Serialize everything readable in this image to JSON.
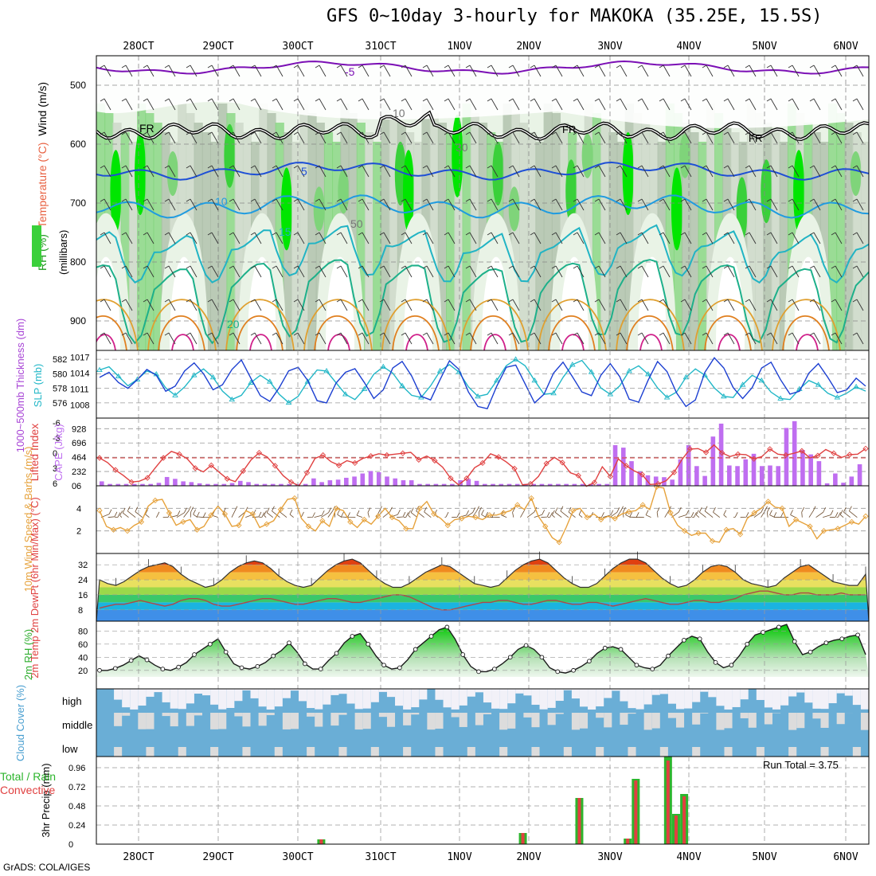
{
  "title": "GFS 0~10day 3-hourly for MAKOKA (35.25E, 15.5S)",
  "footer": "GrADS: COLA/IGES",
  "date_labels": [
    "28OCT",
    "29OCT",
    "30OCT",
    "31OCT",
    "1NOV",
    "2NOV",
    "3NOV",
    "4NOV",
    "5NOV",
    "6NOV"
  ],
  "chart_data": [
    {
      "type": "heatmap",
      "panel": "upper-air",
      "ylabel_parts": [
        "RH (%)",
        "Temperature (°C)",
        "Wind (m/s)"
      ],
      "yaxis_title": "(millibars)",
      "yticks": [
        500,
        600,
        700,
        800,
        900
      ],
      "ylim": [
        450,
        950
      ],
      "contour_labels": [
        "-5",
        "5",
        "10",
        "15",
        "20",
        "FR",
        "10",
        "30",
        "50"
      ],
      "temperature_isotherms": [
        {
          "value": -5,
          "color": "#7b0fb5"
        },
        {
          "value": 5,
          "color": "#1e4fd6"
        },
        {
          "value": 10,
          "color": "#1f9be0"
        },
        {
          "value": 15,
          "color": "#21b4c4"
        },
        {
          "value": 20,
          "color": "#1db08a"
        }
      ],
      "freezing_level_label": "FR",
      "rh_colors": [
        "#ffffff",
        "#e9f3e6",
        "#c9d6c6",
        "#a9bca6",
        "#7fd47a",
        "#3ad03a",
        "#00e600"
      ]
    },
    {
      "type": "line",
      "panel": "thickness-slp",
      "ylabel": "1000~500mb Thickness (dm)",
      "ylabel2": "SLP (mb)",
      "yticks_left": [
        576,
        578,
        580,
        582
      ],
      "yticks_right": [
        1008,
        1011,
        1014,
        1017
      ],
      "series": [
        {
          "name": "1000~500mb Thickness (dm)",
          "color": "#1c3fd1",
          "values": [
            579.5,
            580.2,
            578.8,
            578.0,
            579.2,
            580.6,
            579.8,
            577.6,
            578.3,
            580.4,
            581.5,
            580.0,
            577.8,
            578.5,
            580.6,
            581.9,
            579.4,
            577.0,
            576.2,
            578.1,
            580.4,
            580.9,
            579.1,
            576.3,
            576.0,
            578.7,
            580.2,
            580.7,
            578.8,
            576.6,
            577.8,
            580.8,
            581.7,
            579.7,
            576.9,
            576.4,
            579.2,
            581.8,
            580.6,
            577.5,
            575.5,
            575.2,
            578.3,
            580.9,
            581.2,
            578.6,
            576.0,
            577.2,
            580.1,
            581.6,
            579.6,
            577.5,
            577.0,
            579.8,
            581.4,
            579.6,
            576.5,
            576.1,
            579.1,
            581.7,
            580.3,
            577.4,
            575.5,
            576.4,
            580.2,
            582.2,
            580.8,
            578.1,
            576.6,
            578.1,
            580.8,
            581.6,
            579.2,
            577.2,
            577.6,
            580.1,
            581.4,
            579.5,
            577.4,
            577.8,
            579.4,
            578.3
          ]
        },
        {
          "name": "SLP (mb)",
          "color": "#22b7c7",
          "values": [
            1014.6,
            1015.2,
            1013.4,
            1011.6,
            1012.8,
            1014.4,
            1013.8,
            1011.2,
            1009.8,
            1011.4,
            1013.6,
            1014.8,
            1013.2,
            1010.6,
            1009.0,
            1009.8,
            1012.2,
            1013.6,
            1012.4,
            1010.0,
            1008.4,
            1009.6,
            1012.4,
            1014.6,
            1014.4,
            1012.2,
            1010.0,
            1009.0,
            1011.0,
            1013.8,
            1015.2,
            1014.0,
            1011.6,
            1009.8,
            1009.4,
            1011.6,
            1014.4,
            1015.6,
            1014.2,
            1011.4,
            1009.6,
            1010.0,
            1012.6,
            1015.4,
            1016.6,
            1015.4,
            1012.6,
            1010.0,
            1010.2,
            1013.2,
            1015.6,
            1016.4,
            1014.2,
            1011.2,
            1010.0,
            1011.6,
            1014.4,
            1015.4,
            1013.8,
            1011.2,
            1009.4,
            1010.4,
            1013.2,
            1014.8,
            1013.6,
            1011.2,
            1009.6,
            1009.4,
            1011.8,
            1013.6,
            1012.6,
            1010.4,
            1009.2,
            1009.0,
            1011.0,
            1012.6,
            1011.8,
            1010.2,
            1009.4,
            1010.2,
            1011.4,
            1010.6
          ]
        }
      ]
    },
    {
      "type": "bar",
      "panel": "lifted-cape",
      "ylabel": "Lifted Index",
      "ylabel2": "CAPE (J/kg)",
      "yticks_left": [
        "-6",
        "-3",
        "0",
        "3",
        "6"
      ],
      "yticks_right": [
        928,
        696,
        464,
        232,
        0
      ],
      "series": [
        {
          "name": "Lifted Index",
          "color": "#e04040",
          "values": [
            0.0,
            1.0,
            2.6,
            3.8,
            5.2,
            5.0,
            4.3,
            2.1,
            0.0,
            -1.4,
            -0.8,
            0.2,
            2.2,
            3.0,
            1.6,
            3.1,
            4.5,
            5.1,
            2.8,
            0.4,
            -1.1,
            -0.2,
            1.7,
            3.8,
            5.2,
            6.0,
            3.2,
            0.1,
            -0.6,
            0.8,
            1.6,
            0.6,
            1.1,
            0.1,
            -0.4,
            -0.9,
            -0.6,
            -0.8,
            -1.0,
            -1.2,
            0.4,
            -0.4,
            0.6,
            2.0,
            4.4,
            5.8,
            4.4,
            2.1,
            1.1,
            -0.9,
            -0.2,
            0.9,
            2.3,
            5.8,
            5.6,
            4.0,
            1.2,
            -0.1,
            1.0,
            3.2,
            3.8,
            6.1,
            5.3,
            1.9,
            4.0,
            0.2,
            1.7,
            2.8,
            3.6,
            5.7,
            5.6,
            4.9,
            3.1,
            0.3,
            -1.9,
            -2.0,
            -1.2,
            -2.8,
            -1.1,
            -0.3,
            -0.8,
            -0.7,
            0.2,
            -0.3,
            -1.9,
            -0.8,
            -0.6,
            -1.0,
            -1.5,
            0.0,
            -0.5,
            -1.8,
            -1.0,
            -0.1,
            -0.7,
            -0.8,
            -2.0
          ]
        },
        {
          "name": "CAPE (J/kg)",
          "color": "#bf6ef0",
          "values": [
            72,
            30,
            30,
            30,
            30,
            30,
            30,
            48,
            143,
            113,
            72,
            60,
            40,
            30,
            30,
            30,
            45,
            80,
            60,
            30,
            30,
            30,
            30,
            30,
            30,
            30,
            120,
            60,
            90,
            100,
            130,
            150,
            200,
            240,
            220,
            150,
            120,
            90,
            90,
            30,
            30,
            30,
            30,
            30,
            90,
            110,
            80,
            30,
            30,
            30,
            30,
            30,
            30,
            30,
            30,
            30,
            30,
            30,
            30,
            30,
            30,
            30,
            30,
            660,
            620,
            400,
            230,
            170,
            150,
            140,
            100,
            430,
            660,
            320,
            160,
            800,
            1010,
            330,
            320,
            430,
            520,
            320,
            330,
            320,
            940,
            1050,
            580,
            510,
            400,
            40,
            200,
            50,
            150,
            350
          ]
        }
      ]
    },
    {
      "type": "line",
      "panel": "wind-10m",
      "ylabel": "10m Wind Speed & Barbs (m/s)",
      "yticks": [
        2,
        4,
        6
      ],
      "ylim": [
        0,
        6
      ],
      "series": [
        {
          "name": "10m Wind Speed",
          "color": "#e6a23c",
          "values": [
            3.8,
            2.4,
            2.1,
            2.3,
            2.0,
            2.5,
            2.8,
            4.2,
            4.7,
            4.8,
            3.6,
            2.5,
            2.8,
            3.0,
            2.1,
            2.4,
            3.4,
            4.2,
            3.5,
            2.4,
            2.5,
            3.8,
            3.5,
            2.3,
            2.6,
            2.9,
            3.9,
            4.8,
            4.9,
            3.1,
            2.4,
            2.0,
            2.9,
            2.4,
            4.0,
            3.8,
            2.8,
            2.3,
            3.0,
            2.6,
            3.3,
            4.0,
            3.2,
            2.9,
            2.2,
            2.2,
            4.0,
            4.6,
            3.5,
            3.1,
            2.5,
            3.0,
            3.1,
            3.3,
            3.2,
            3.0,
            3.4,
            3.4,
            3.6,
            3.8,
            4.3,
            3.9,
            4.9,
            3.3,
            2.4,
            1.4,
            1.0,
            2.3,
            3.8,
            4.0,
            3.2,
            3.5,
            3.0,
            3.3,
            3.1,
            3.5,
            3.7,
            3.8,
            4.3,
            3.9,
            5.9,
            5.8,
            3.6,
            2.5,
            2.0,
            1.6,
            1.8,
            1.8,
            1.1,
            1.0,
            2.1,
            2.2,
            1.7,
            3.1,
            3.6,
            4.0,
            4.6,
            4.1,
            4.0,
            2.4,
            3.0,
            2.7,
            2.4,
            1.3,
            2.0,
            2.1,
            2.2,
            2.5,
            2.8,
            2.6,
            3.3
          ]
        }
      ]
    },
    {
      "type": "area",
      "panel": "temperature-2m",
      "ylabel": "2m Temp 2m DewPt (6hr Min/Max) (°C)",
      "yticks": [
        8,
        16,
        24,
        32
      ],
      "ylim": [
        2,
        38
      ],
      "series": [
        {
          "name": "2m Temp",
          "color": "#333333",
          "values": [
            24,
            22,
            21,
            23,
            26,
            29,
            31,
            32,
            33,
            31,
            27,
            24,
            22,
            20,
            21,
            24,
            28,
            31,
            33,
            34,
            33,
            30,
            26,
            23,
            21,
            20,
            21,
            25,
            29,
            32,
            34,
            35,
            33,
            29,
            25,
            22,
            20,
            20,
            22,
            25,
            28,
            30,
            32,
            31,
            28,
            25,
            22,
            21,
            20,
            21,
            25,
            29,
            32,
            34,
            35,
            33,
            29,
            25,
            22,
            20,
            20,
            22,
            26,
            30,
            33,
            35,
            35,
            33,
            29,
            25,
            22,
            20,
            21,
            24,
            28,
            31,
            32,
            31,
            28,
            24,
            22,
            21,
            20,
            21,
            25,
            28,
            31,
            32,
            29,
            26,
            23,
            22,
            21,
            21,
            27
          ]
        },
        {
          "name": "2m DewPt",
          "color": "#b04848",
          "values": [
            9,
            10,
            11,
            11,
            12,
            13,
            12,
            11,
            10,
            11,
            13,
            14,
            14,
            13,
            11,
            10,
            10,
            11,
            12,
            13,
            14,
            14,
            13,
            12,
            11,
            11,
            12,
            13,
            14,
            14,
            13,
            12,
            12,
            13,
            14,
            15,
            16,
            16,
            15,
            13,
            11,
            9,
            8,
            8,
            9,
            10,
            11,
            12,
            12,
            13,
            13,
            12,
            11,
            11,
            12,
            13,
            13,
            12,
            11,
            11,
            12,
            12,
            11,
            10,
            11,
            12,
            13,
            14,
            13,
            12,
            11,
            11,
            12,
            13,
            13,
            12,
            12,
            13,
            14,
            16,
            17,
            18,
            18,
            17,
            16,
            16,
            17,
            17,
            16,
            16,
            16,
            17,
            16,
            16,
            16
          ]
        }
      ]
    },
    {
      "type": "area",
      "panel": "rh-2m",
      "ylabel": "2m RH (%)",
      "yticks": [
        20,
        40,
        60,
        80
      ],
      "ylim": [
        10,
        95
      ],
      "series": [
        {
          "name": "2m RH",
          "color": "#39b839",
          "values": [
            20,
            20,
            23,
            28,
            35,
            42,
            36,
            28,
            22,
            20,
            25,
            32,
            44,
            52,
            60,
            68,
            48,
            30,
            24,
            22,
            26,
            32,
            42,
            50,
            62,
            48,
            30,
            22,
            22,
            35,
            46,
            62,
            72,
            76,
            60,
            42,
            28,
            22,
            24,
            36,
            52,
            62,
            72,
            82,
            86,
            68,
            44,
            26,
            18,
            18,
            22,
            30,
            40,
            52,
            58,
            52,
            40,
            24,
            18,
            16,
            20,
            26,
            34,
            46,
            54,
            56,
            52,
            40,
            28,
            24,
            22,
            28,
            42,
            54,
            66,
            72,
            68,
            48,
            32,
            24,
            28,
            42,
            60,
            74,
            78,
            82,
            86,
            90,
            64,
            44,
            48,
            56,
            62,
            66,
            68,
            72,
            74,
            44
          ]
        }
      ]
    },
    {
      "type": "heatmap",
      "panel": "cloud-cover",
      "ylabel": "Cloud Cover (%)",
      "levels": [
        "high",
        "middle",
        "low"
      ]
    },
    {
      "type": "bar",
      "panel": "precip",
      "ylabel": "3hr Precip (mm)",
      "legend_left": "Total / Rain",
      "legend_left2": "Convective",
      "annotation": "Run Total = 3.75",
      "yticks": [
        0,
        0.24,
        0.48,
        0.72,
        0.96
      ],
      "ylim": [
        0,
        1.1
      ],
      "bars": [
        {
          "x": 27,
          "total": 0.06,
          "convective": 0.06
        },
        {
          "x": 52,
          "total": 0.14,
          "convective": 0.14
        },
        {
          "x": 59,
          "total": 0.58,
          "convective": 0.58
        },
        {
          "x": 65,
          "total": 0.07,
          "convective": 0.07
        },
        {
          "x": 66,
          "total": 0.82,
          "convective": 0.8
        },
        {
          "x": 70,
          "total": 1.1,
          "convective": 1.05
        },
        {
          "x": 71,
          "total": 0.38,
          "convective": 0.36
        },
        {
          "x": 72,
          "total": 0.63,
          "convective": 0.6
        }
      ]
    }
  ]
}
